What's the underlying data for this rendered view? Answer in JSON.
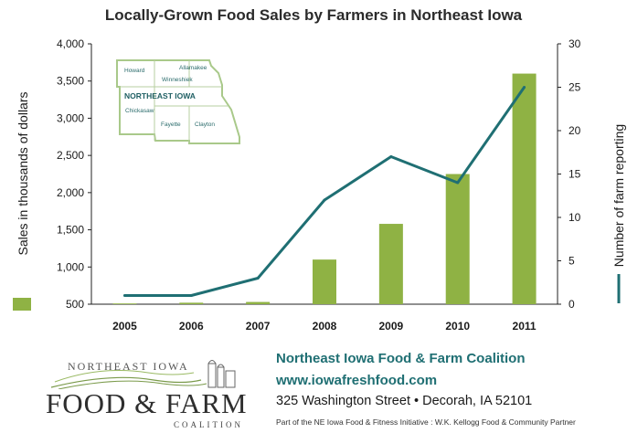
{
  "chart_data": {
    "type": "bar",
    "title": "Locally-Grown Food Sales by Farmers in Northeast Iowa",
    "categories": [
      "2005",
      "2006",
      "2007",
      "2008",
      "2009",
      "2010",
      "2011"
    ],
    "series": [
      {
        "name": "Sales in thousands of dollars",
        "type": "bar",
        "axis": "left",
        "color": "#8fb244",
        "values": [
          510,
          520,
          530,
          1100,
          1580,
          2250,
          3600
        ]
      },
      {
        "name": "Number of farm reporting",
        "type": "line",
        "axis": "right",
        "color": "#1f6f73",
        "values": [
          1,
          1,
          3,
          12,
          17,
          14,
          25
        ]
      }
    ],
    "ylabel": "Sales in thousands of dollars",
    "y2label": "Number of farm reporting",
    "ylim": [
      500,
      4000
    ],
    "y2lim": [
      0,
      30
    ],
    "yticks": [
      "500",
      "1,000",
      "1,500",
      "2,000",
      "2,500",
      "3,000",
      "3,500",
      "4,000"
    ],
    "y2ticks": [
      "0",
      "5",
      "10",
      "15",
      "20",
      "25",
      "30"
    ],
    "grid": false,
    "legend": "axis titles carry swatches (bar swatch left, line swatch right)"
  },
  "map": {
    "title": "NORTHEAST IOWA",
    "counties": [
      "Howard",
      "Allamakee",
      "Winneshiek",
      "Chickasaw",
      "Fayette",
      "Clayton"
    ]
  },
  "footer": {
    "logo_top": "NORTHEAST IOWA",
    "logo_main": "FOOD & FARM",
    "logo_sub": "COALITION",
    "org_name": "Northeast Iowa Food & Farm Coalition",
    "url": "www.iowafreshfood.com",
    "address": "325 Washington Street • Decorah, IA  52101",
    "partner": "Part of the NE Iowa Food & Fitness Initiative :  W.K. Kellogg Food & Community Partner"
  },
  "colors": {
    "bar": "#8fb244",
    "line": "#1f6f73",
    "text_accent": "#1f6f73"
  }
}
